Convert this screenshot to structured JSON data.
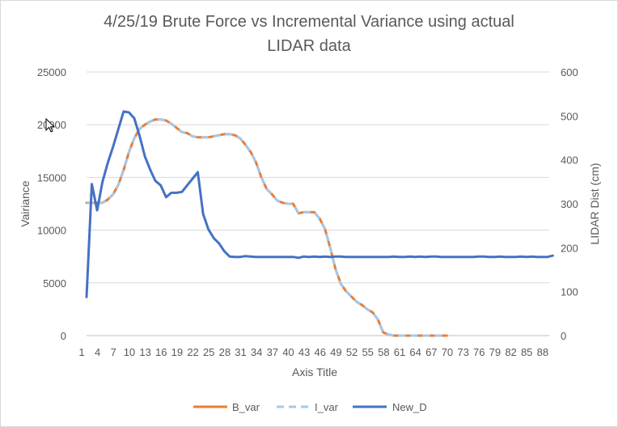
{
  "chart_data": {
    "type": "line",
    "title_lines": [
      "4/25/19 Brute Force vs Incremental Variance using actual",
      "LIDAR data"
    ],
    "xlabel": "Axis Title",
    "ylabel": "Vairiance",
    "y2label": "LIDAR Dist (cm)",
    "ylim": [
      0,
      25000
    ],
    "y2lim": [
      0,
      600
    ],
    "yticks": [
      "0",
      "5000",
      "10000",
      "15000",
      "20000",
      "25000"
    ],
    "y2ticks": [
      "0",
      "100",
      "200",
      "300",
      "400",
      "500",
      "600"
    ],
    "xticks": [
      "1",
      "4",
      "7",
      "10",
      "13",
      "16",
      "19",
      "22",
      "25",
      "28",
      "31",
      "34",
      "37",
      "40",
      "43",
      "46",
      "49",
      "52",
      "55",
      "58",
      "61",
      "64",
      "67",
      "70",
      "73",
      "76",
      "79",
      "82",
      "85",
      "88"
    ],
    "grid": true,
    "legend_position": "bottom",
    "series": [
      {
        "name": "B_var",
        "axis": "left",
        "color": "#ED7D31",
        "dash": "solid",
        "values": [
          12600,
          12600,
          12600,
          12600,
          12900,
          13400,
          14300,
          15700,
          17400,
          18700,
          19600,
          20000,
          20300,
          20500,
          20500,
          20400,
          20100,
          19700,
          19300,
          19200,
          18900,
          18800,
          18800,
          18800,
          18900,
          19000,
          19100,
          19100,
          19000,
          18700,
          18100,
          17400,
          16400,
          15000,
          13900,
          13400,
          12800,
          12600,
          12500,
          12500,
          11600,
          11700,
          11700,
          11700,
          11100,
          10100,
          8300,
          6300,
          4900,
          4200,
          3700,
          3200,
          2900,
          2500,
          2200,
          1500,
          300,
          100,
          0,
          0,
          0,
          0,
          0,
          0,
          0,
          0,
          0,
          0,
          0
        ]
      },
      {
        "name": "I_var",
        "axis": "left",
        "color": "#A5C8EB",
        "dash": "dashed",
        "values": [
          12600,
          12600,
          12600,
          12600,
          12900,
          13400,
          14300,
          15700,
          17400,
          18700,
          19600,
          20000,
          20300,
          20500,
          20500,
          20400,
          20100,
          19700,
          19300,
          19200,
          18900,
          18800,
          18800,
          18800,
          18900,
          19000,
          19100,
          19100,
          19000,
          18700,
          18100,
          17400,
          16400,
          15000,
          13900,
          13400,
          12800,
          12600,
          12500,
          12500,
          11600,
          11700,
          11700,
          11700,
          11100,
          10100,
          8300,
          6300,
          4900,
          4200,
          3700,
          3200,
          2900,
          2500,
          2200,
          1500,
          300,
          100,
          0,
          0,
          0,
          0,
          0,
          0,
          0,
          0,
          0,
          0,
          0
        ]
      },
      {
        "name": "New_D",
        "axis": "right",
        "color": "#4472C4",
        "dash": "solid",
        "values": [
          88,
          345,
          285,
          350,
          393,
          430,
          470,
          510,
          508,
          495,
          455,
          408,
          378,
          352,
          342,
          315,
          325,
          325,
          327,
          342,
          357,
          372,
          277,
          242,
          222,
          210,
          192,
          180,
          179,
          179,
          181,
          180,
          179,
          179,
          179,
          179,
          179,
          179,
          179,
          179,
          177,
          180,
          179,
          180,
          179,
          180,
          179,
          180,
          180,
          179,
          179,
          179,
          179,
          179,
          179,
          179,
          179,
          179,
          180,
          179,
          179,
          180,
          179,
          180,
          179,
          180,
          180,
          179,
          179,
          179,
          179,
          179,
          179,
          179,
          180,
          180,
          179,
          179,
          180,
          179,
          179,
          179,
          180,
          179,
          180,
          179,
          179,
          179,
          182
        ]
      }
    ]
  }
}
